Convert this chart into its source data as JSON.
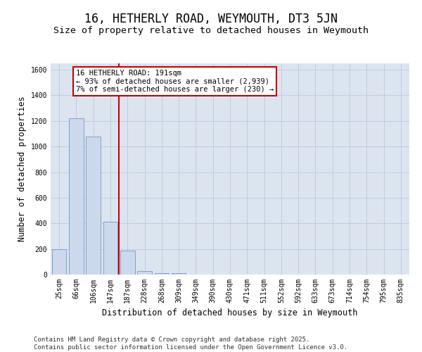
{
  "title1": "16, HETHERLY ROAD, WEYMOUTH, DT3 5JN",
  "title2": "Size of property relative to detached houses in Weymouth",
  "xlabel": "Distribution of detached houses by size in Weymouth",
  "ylabel": "Number of detached properties",
  "categories": [
    "25sqm",
    "66sqm",
    "106sqm",
    "147sqm",
    "187sqm",
    "228sqm",
    "268sqm",
    "309sqm",
    "349sqm",
    "390sqm",
    "430sqm",
    "471sqm",
    "511sqm",
    "552sqm",
    "592sqm",
    "633sqm",
    "673sqm",
    "714sqm",
    "754sqm",
    "795sqm",
    "835sqm"
  ],
  "values": [
    200,
    1220,
    1080,
    415,
    185,
    30,
    10,
    10,
    0,
    0,
    0,
    0,
    0,
    0,
    0,
    0,
    0,
    0,
    0,
    0,
    0
  ],
  "bar_color": "#ccd9ed",
  "bar_edge_color": "#7098c4",
  "vline_color": "#cc0000",
  "vline_x_index": 4,
  "annotation_text": "16 HETHERLY ROAD: 191sqm\n← 93% of detached houses are smaller (2,939)\n7% of semi-detached houses are larger (230) →",
  "annotation_box_color": "#cc0000",
  "ylim": [
    0,
    1650
  ],
  "yticks": [
    0,
    200,
    400,
    600,
    800,
    1000,
    1200,
    1400,
    1600
  ],
  "grid_color": "#bcc8dc",
  "bg_color": "#dce4f0",
  "footer_text": "Contains HM Land Registry data © Crown copyright and database right 2025.\nContains public sector information licensed under the Open Government Licence v3.0.",
  "title1_fontsize": 12,
  "title2_fontsize": 9.5,
  "tick_fontsize": 7,
  "label_fontsize": 8.5,
  "footer_fontsize": 6.5,
  "annot_fontsize": 7.5
}
